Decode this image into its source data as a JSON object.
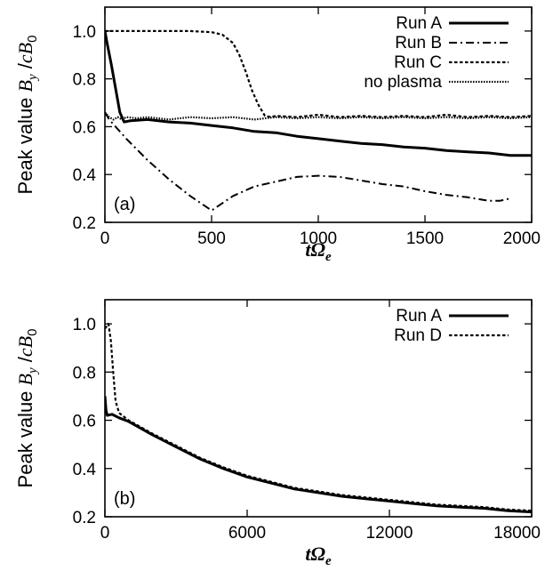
{
  "chart_data": [
    {
      "type": "line",
      "panel_label": "(a)",
      "ylabel": "Peak value B_y /cB_0",
      "ylabel_parts": {
        "pre": "Peak value ",
        "B": "B",
        "sub_y": "y",
        "slash": " /",
        "c": "c",
        "B0": "B",
        "sub_0": "0"
      },
      "xlabel": "tΩe",
      "xlabel_parts": {
        "t": "t",
        "omega": "Ω",
        "sub": "e"
      },
      "xlim": [
        0,
        2000
      ],
      "ylim": [
        0.2,
        1.1
      ],
      "xticks": [
        0,
        500,
        1000,
        1500,
        2000
      ],
      "xtick_labels": [
        "0",
        "500",
        "1000",
        "1500",
        "2000"
      ],
      "yticks": [
        0.2,
        0.4,
        0.6,
        0.8,
        1.0
      ],
      "ytick_labels": [
        "0.2",
        "0.4",
        "0.6",
        "0.8",
        "1.0"
      ],
      "legend_position": "top-right",
      "series": [
        {
          "name": "Run A",
          "style": "solid",
          "x": [
            0,
            10,
            30,
            50,
            70,
            90,
            120,
            200,
            300,
            400,
            500,
            600,
            700,
            800,
            900,
            1000,
            1100,
            1200,
            1300,
            1400,
            1500,
            1600,
            1700,
            1800,
            1900,
            2000
          ],
          "y": [
            1.0,
            0.95,
            0.86,
            0.76,
            0.66,
            0.62,
            0.625,
            0.63,
            0.62,
            0.615,
            0.605,
            0.595,
            0.58,
            0.575,
            0.56,
            0.55,
            0.54,
            0.53,
            0.525,
            0.515,
            0.51,
            0.5,
            0.495,
            0.49,
            0.48,
            0.48
          ]
        },
        {
          "name": "Run B",
          "style": "dash-dot",
          "x": [
            0,
            20,
            50,
            100,
            200,
            300,
            400,
            500,
            600,
            700,
            800,
            900,
            1000,
            1100,
            1200,
            1300,
            1400,
            1500,
            1600,
            1700,
            1800,
            1850,
            1900
          ],
          "y": [
            0.66,
            0.63,
            0.6,
            0.55,
            0.46,
            0.38,
            0.31,
            0.25,
            0.31,
            0.35,
            0.37,
            0.39,
            0.395,
            0.39,
            0.375,
            0.36,
            0.35,
            0.33,
            0.315,
            0.305,
            0.29,
            0.29,
            0.3
          ]
        },
        {
          "name": "Run C",
          "style": "dotted",
          "x": [
            0,
            50,
            100,
            200,
            300,
            400,
            500,
            550,
            600,
            630,
            660,
            690,
            720,
            750,
            780,
            800,
            900,
            1000,
            1100,
            1200,
            1300,
            1400,
            1500,
            1600,
            1700,
            1800,
            1900,
            2000
          ],
          "y": [
            1.0,
            1.0,
            1.0,
            1.0,
            1.0,
            1.0,
            0.995,
            0.985,
            0.95,
            0.9,
            0.83,
            0.75,
            0.69,
            0.645,
            0.64,
            0.645,
            0.64,
            0.65,
            0.64,
            0.645,
            0.64,
            0.645,
            0.64,
            0.65,
            0.64,
            0.645,
            0.64,
            0.645
          ]
        },
        {
          "name": "no plasma",
          "style": "dense-dot",
          "x": [
            0,
            20,
            40,
            60,
            80,
            100,
            150,
            200,
            300,
            400,
            500,
            600,
            700,
            800,
            900,
            1000,
            1100,
            1200,
            1300,
            1400,
            1500,
            1600,
            1700,
            1800,
            1900,
            2000
          ],
          "y": [
            0.66,
            0.64,
            0.63,
            0.64,
            0.63,
            0.64,
            0.635,
            0.64,
            0.63,
            0.64,
            0.635,
            0.64,
            0.63,
            0.64,
            0.635,
            0.64,
            0.635,
            0.64,
            0.635,
            0.64,
            0.635,
            0.64,
            0.635,
            0.64,
            0.635,
            0.64
          ]
        }
      ]
    },
    {
      "type": "line",
      "panel_label": "(b)",
      "ylabel": "Peak value B_y /cB_0",
      "ylabel_parts": {
        "pre": "Peak value ",
        "B": "B",
        "sub_y": "y",
        "slash": " /",
        "c": "c",
        "B0": "B",
        "sub_0": "0"
      },
      "xlabel": "tΩe",
      "xlabel_parts": {
        "t": "t",
        "omega": "Ω",
        "sub": "e"
      },
      "xlim": [
        0,
        18000
      ],
      "ylim": [
        0.2,
        1.1
      ],
      "xticks": [
        0,
        6000,
        12000,
        18000
      ],
      "xtick_labels": [
        "0",
        "6000",
        "12000",
        "18000"
      ],
      "yticks": [
        0.2,
        0.4,
        0.6,
        0.8,
        1.0
      ],
      "ytick_labels": [
        "0.2",
        "0.4",
        "0.6",
        "0.8",
        "1.0"
      ],
      "legend_position": "top-right",
      "series": [
        {
          "name": "Run A",
          "style": "solid",
          "x": [
            0,
            50,
            100,
            300,
            600,
            1000,
            2000,
            3000,
            4000,
            5000,
            6000,
            7000,
            8000,
            9000,
            10000,
            11000,
            12000,
            13000,
            14000,
            15000,
            16000,
            17000,
            18000
          ],
          "y": [
            0.7,
            0.64,
            0.62,
            0.625,
            0.61,
            0.595,
            0.54,
            0.49,
            0.44,
            0.4,
            0.365,
            0.34,
            0.315,
            0.3,
            0.285,
            0.275,
            0.265,
            0.255,
            0.245,
            0.24,
            0.235,
            0.225,
            0.22
          ]
        },
        {
          "name": "Run D",
          "style": "dotted",
          "x": [
            0,
            150,
            250,
            350,
            450,
            600,
            1000,
            2000,
            3000,
            4000,
            5000,
            6000,
            7000,
            8000,
            9000,
            10000,
            11000,
            12000,
            13000,
            14000,
            15000,
            16000,
            17000,
            18000
          ],
          "y": [
            0.98,
            1.0,
            0.93,
            0.8,
            0.68,
            0.63,
            0.6,
            0.545,
            0.495,
            0.445,
            0.405,
            0.37,
            0.345,
            0.32,
            0.305,
            0.29,
            0.28,
            0.27,
            0.26,
            0.25,
            0.245,
            0.24,
            0.23,
            0.225
          ]
        }
      ]
    }
  ]
}
